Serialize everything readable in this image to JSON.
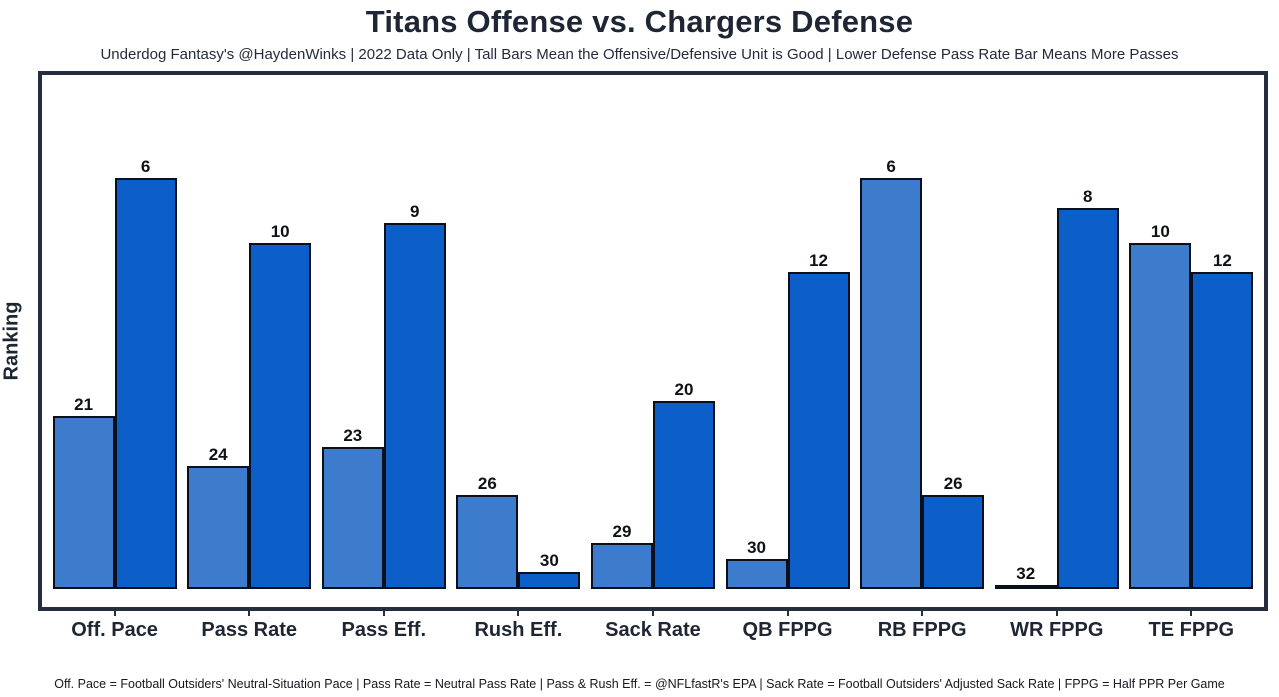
{
  "title": "Titans Offense vs. Chargers Defense",
  "subtitle": "Underdog Fantasy's @HaydenWinks | 2022 Data Only | Tall Bars Mean the Offensive/Defensive Unit is Good | Lower Defense Pass Rate Bar Means More Passes",
  "footer": "Off. Pace = Football Outsiders' Neutral-Situation Pace | Pass Rate = Neutral Pass Rate | Pass & Rush Eff. = @NFLfastR's EPA | Sack Rate = Football Outsiders' Adjusted Sack Rate | FPPG = Half PPR Per Game",
  "colors": {
    "offense_bar": "#3d7ccc",
    "defense_bar": "#0c5ec8",
    "bar_outline": "#0b0f19",
    "frame": "#252e3d",
    "text": "#1e2633"
  },
  "chart_data": {
    "type": "bar",
    "title": "Titans Offense vs. Chargers Defense",
    "ylabel": "Ranking",
    "xlabel": "",
    "grid": false,
    "legend": "none",
    "axis_note": "y-axis has no tick labels; bars are labeled with NFL rank (1=best of 32); taller bar = better unit; bar heights scale with the underlying metric",
    "categories": [
      "Off. Pace",
      "Pass Rate",
      "Pass Eff.",
      "Rush Eff.",
      "Sack Rate",
      "QB FPPG",
      "RB FPPG",
      "WR FPPG",
      "TE FPPG"
    ],
    "series": [
      {
        "name": "Titans Offense",
        "key": "titans-offense",
        "color_key": "offense_bar",
        "ranks": [
          21,
          24,
          23,
          26,
          29,
          30,
          6,
          32,
          10
        ],
        "height_pct": [
          33.7,
          24.0,
          27.7,
          18.3,
          9.0,
          5.8,
          79.9,
          0.3,
          67.4
        ]
      },
      {
        "name": "Chargers Defense",
        "key": "chargers-defense",
        "color_key": "defense_bar",
        "ranks": [
          6,
          10,
          9,
          30,
          20,
          12,
          26,
          8,
          12
        ],
        "height_pct": [
          79.9,
          67.4,
          71.2,
          3.3,
          36.5,
          61.6,
          18.3,
          74.1,
          61.6
        ]
      }
    ]
  }
}
